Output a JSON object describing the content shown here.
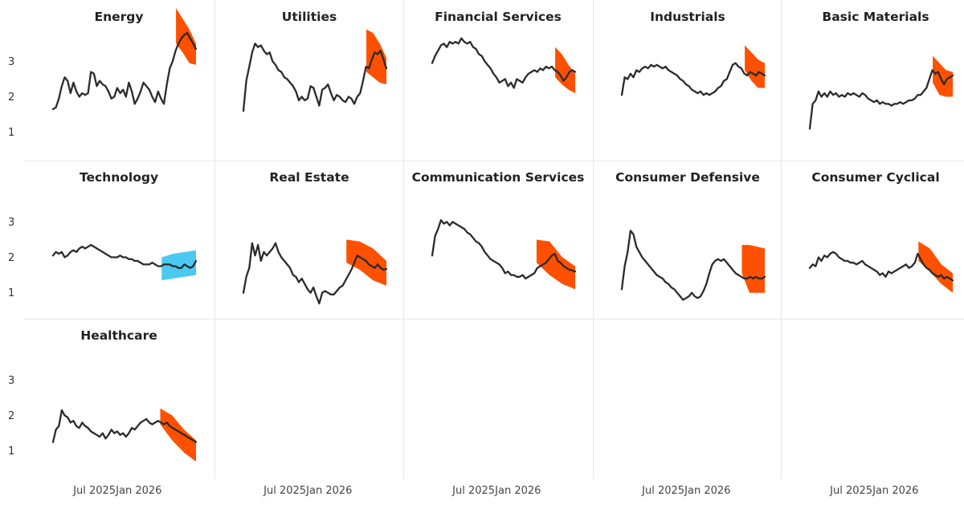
{
  "chart_data": {
    "type": "line",
    "layout": "small-multiples",
    "y_ticks": [
      "1",
      "2",
      "3"
    ],
    "ylim": [
      0.5,
      4.1
    ],
    "xlim": [
      0,
      1
    ],
    "x_ticks": [
      "Jul 2025",
      "Jan 2026"
    ],
    "colors": {
      "line": "#2b2b2b",
      "band_down": "#ff5000",
      "band_up": "#4cc9f0"
    },
    "panels": [
      {
        "title": "Energy",
        "band": "down",
        "values": [
          1.7,
          1.75,
          2.0,
          2.35,
          2.6,
          2.5,
          2.15,
          2.45,
          2.2,
          2.05,
          2.15,
          2.1,
          2.15,
          2.75,
          2.7,
          2.35,
          2.5,
          2.4,
          2.35,
          2.2,
          2.0,
          2.05,
          2.3,
          2.15,
          2.25,
          2.05,
          2.45,
          2.2,
          1.85,
          2.0,
          2.2,
          2.45,
          2.35,
          2.25,
          2.05,
          1.9,
          2.2,
          2.0,
          1.85,
          2.4,
          2.85,
          3.05,
          3.35,
          3.55,
          3.7,
          3.8,
          3.85,
          3.7,
          3.55,
          3.4
        ],
        "forecast_start": 0.86,
        "band_upper": [
          4.55,
          4.25,
          3.95,
          3.55
        ],
        "band_lower": [
          3.55,
          3.3,
          3.0,
          2.95
        ]
      },
      {
        "title": "Utilities",
        "band": "down",
        "values": [
          1.65,
          2.5,
          2.9,
          3.3,
          3.55,
          3.45,
          3.5,
          3.35,
          3.25,
          3.3,
          3.05,
          2.95,
          2.8,
          2.75,
          2.6,
          2.55,
          2.45,
          2.35,
          2.2,
          1.95,
          2.05,
          1.95,
          2.0,
          2.35,
          2.3,
          2.05,
          1.8,
          2.25,
          2.3,
          2.4,
          2.15,
          1.95,
          2.1,
          2.05,
          1.95,
          1.9,
          2.05,
          2.0,
          1.85,
          2.05,
          2.15,
          2.5,
          2.9,
          2.85,
          3.1,
          3.3,
          3.25,
          3.35,
          3.1,
          2.85
        ],
        "forecast_start": 0.86,
        "band_upper": [
          3.95,
          3.85,
          3.55,
          3.15
        ],
        "band_lower": [
          2.75,
          2.6,
          2.45,
          2.4
        ]
      },
      {
        "title": "Financial Services",
        "band": "down",
        "values": [
          3.0,
          3.2,
          3.35,
          3.5,
          3.55,
          3.45,
          3.6,
          3.55,
          3.6,
          3.55,
          3.7,
          3.6,
          3.55,
          3.6,
          3.45,
          3.4,
          3.25,
          3.2,
          3.05,
          2.95,
          2.85,
          2.7,
          2.6,
          2.45,
          2.5,
          2.55,
          2.35,
          2.45,
          2.3,
          2.55,
          2.5,
          2.45,
          2.6,
          2.7,
          2.75,
          2.8,
          2.75,
          2.85,
          2.8,
          2.9,
          2.85,
          2.9,
          2.8,
          2.75,
          2.65,
          2.5,
          2.6,
          2.75,
          2.8,
          2.75
        ],
        "forecast_start": 0.86,
        "band_upper": [
          3.45,
          3.25,
          2.95,
          2.7
        ],
        "band_lower": [
          2.6,
          2.4,
          2.25,
          2.15
        ]
      },
      {
        "title": "Industrials",
        "band": "down",
        "values": [
          2.1,
          2.6,
          2.55,
          2.7,
          2.6,
          2.8,
          2.75,
          2.85,
          2.9,
          2.85,
          2.95,
          2.9,
          2.95,
          2.9,
          2.85,
          2.9,
          2.8,
          2.75,
          2.7,
          2.65,
          2.55,
          2.5,
          2.4,
          2.35,
          2.25,
          2.2,
          2.15,
          2.2,
          2.1,
          2.15,
          2.1,
          2.15,
          2.2,
          2.3,
          2.35,
          2.5,
          2.55,
          2.75,
          2.95,
          3.0,
          2.9,
          2.85,
          2.7,
          2.65,
          2.75,
          2.7,
          2.65,
          2.75,
          2.7,
          2.65
        ],
        "forecast_start": 0.86,
        "band_upper": [
          3.5,
          3.3,
          3.1,
          3.0
        ],
        "band_lower": [
          2.8,
          2.5,
          2.3,
          2.3
        ]
      },
      {
        "title": "Basic Materials",
        "band": "down",
        "values": [
          1.15,
          1.85,
          1.95,
          2.2,
          2.05,
          2.15,
          2.05,
          2.2,
          2.1,
          2.15,
          2.05,
          2.1,
          2.05,
          2.15,
          2.1,
          2.15,
          2.1,
          2.05,
          2.15,
          2.1,
          2.0,
          1.95,
          1.9,
          1.95,
          1.85,
          1.9,
          1.85,
          1.85,
          1.8,
          1.85,
          1.85,
          1.9,
          1.85,
          1.9,
          1.95,
          1.95,
          2.0,
          2.1,
          2.1,
          2.2,
          2.3,
          2.55,
          2.8,
          2.7,
          2.75,
          2.55,
          2.4,
          2.55,
          2.6,
          2.65
        ],
        "forecast_start": 0.86,
        "band_upper": [
          3.2,
          3.0,
          2.8,
          2.75
        ],
        "band_lower": [
          2.45,
          2.1,
          2.05,
          2.05
        ]
      },
      {
        "title": "Technology",
        "band": "up",
        "values": [
          2.1,
          2.2,
          2.15,
          2.2,
          2.05,
          2.1,
          2.2,
          2.25,
          2.2,
          2.3,
          2.35,
          2.3,
          2.35,
          2.4,
          2.35,
          2.3,
          2.25,
          2.2,
          2.15,
          2.1,
          2.05,
          2.05,
          2.05,
          2.1,
          2.05,
          2.05,
          2.0,
          2.0,
          1.95,
          1.95,
          1.9,
          1.85,
          1.85,
          1.85,
          1.9,
          1.85,
          1.8,
          1.8,
          1.85,
          1.85,
          1.85,
          1.8,
          1.8,
          1.75,
          1.75,
          1.85,
          1.8,
          1.75,
          1.8,
          1.95
        ],
        "forecast_start": 0.76,
        "band_upper": [
          2.05,
          2.15,
          2.2,
          2.25
        ],
        "band_lower": [
          1.4,
          1.45,
          1.5,
          1.55
        ]
      },
      {
        "title": "Real Estate",
        "band": "down",
        "values": [
          1.05,
          1.5,
          1.75,
          2.45,
          2.1,
          2.4,
          1.95,
          2.2,
          2.1,
          2.2,
          2.3,
          2.45,
          2.2,
          2.05,
          1.95,
          1.85,
          1.75,
          1.55,
          1.5,
          1.35,
          1.45,
          1.3,
          1.15,
          1.05,
          1.2,
          0.95,
          0.75,
          1.05,
          1.1,
          1.05,
          1.0,
          1.0,
          1.1,
          1.2,
          1.25,
          1.4,
          1.55,
          1.7,
          1.9,
          2.1,
          2.05,
          2.0,
          1.95,
          1.85,
          1.8,
          1.75,
          1.85,
          1.75,
          1.7,
          1.72
        ],
        "forecast_start": 0.72,
        "band_upper": [
          2.55,
          2.5,
          2.3,
          1.95
        ],
        "band_lower": [
          1.9,
          1.7,
          1.4,
          1.25
        ]
      },
      {
        "title": "Communication Services",
        "band": "down",
        "values": [
          2.1,
          2.65,
          2.85,
          3.1,
          3.0,
          3.05,
          2.95,
          3.05,
          3.0,
          2.95,
          2.9,
          2.85,
          2.75,
          2.7,
          2.6,
          2.5,
          2.45,
          2.35,
          2.2,
          2.1,
          2.0,
          1.95,
          1.9,
          1.85,
          1.75,
          1.6,
          1.65,
          1.55,
          1.55,
          1.5,
          1.5,
          1.55,
          1.45,
          1.5,
          1.55,
          1.6,
          1.75,
          1.8,
          1.85,
          1.9,
          2.0,
          2.1,
          2.15,
          1.95,
          1.9,
          1.8,
          1.75,
          1.7,
          1.68,
          1.65
        ],
        "forecast_start": 0.73,
        "band_upper": [
          2.55,
          2.5,
          2.05,
          1.8
        ],
        "band_lower": [
          1.9,
          1.55,
          1.3,
          1.15
        ]
      },
      {
        "title": "Consumer Defensive",
        "band": "down",
        "values": [
          1.15,
          1.8,
          2.2,
          2.8,
          2.7,
          2.35,
          2.2,
          2.05,
          1.95,
          1.85,
          1.75,
          1.65,
          1.55,
          1.5,
          1.45,
          1.35,
          1.3,
          1.2,
          1.15,
          1.05,
          0.95,
          0.85,
          0.9,
          0.95,
          1.05,
          0.95,
          0.9,
          0.95,
          1.1,
          1.3,
          1.6,
          1.85,
          1.95,
          2.0,
          1.95,
          2.0,
          1.9,
          1.8,
          1.7,
          1.6,
          1.55,
          1.5,
          1.45,
          1.45,
          1.5,
          1.45,
          1.5,
          1.45,
          1.45,
          1.5
        ],
        "forecast_start": 0.84,
        "band_upper": [
          2.4,
          2.4,
          2.35,
          2.3
        ],
        "band_lower": [
          1.6,
          1.05,
          1.05,
          1.05
        ]
      },
      {
        "title": "Consumer Cyclical",
        "band": "down",
        "values": [
          1.75,
          1.85,
          1.8,
          2.05,
          1.95,
          2.1,
          2.05,
          2.15,
          2.2,
          2.15,
          2.05,
          2.0,
          1.95,
          1.95,
          1.9,
          1.9,
          1.85,
          1.9,
          1.95,
          1.85,
          1.8,
          1.75,
          1.7,
          1.65,
          1.55,
          1.6,
          1.5,
          1.65,
          1.6,
          1.65,
          1.7,
          1.75,
          1.8,
          1.85,
          1.75,
          1.8,
          1.9,
          2.15,
          2.0,
          1.85,
          1.75,
          1.7,
          1.6,
          1.55,
          1.5,
          1.55,
          1.45,
          1.5,
          1.45,
          1.4
        ],
        "forecast_start": 0.76,
        "band_upper": [
          2.5,
          2.3,
          1.85,
          1.6
        ],
        "band_lower": [
          1.95,
          1.65,
          1.3,
          1.05
        ]
      },
      {
        "title": "Healthcare",
        "band": "down",
        "values": [
          1.3,
          1.65,
          1.75,
          2.2,
          2.05,
          2.0,
          1.85,
          1.9,
          1.75,
          1.7,
          1.85,
          1.75,
          1.7,
          1.6,
          1.55,
          1.5,
          1.45,
          1.55,
          1.4,
          1.5,
          1.65,
          1.55,
          1.6,
          1.5,
          1.55,
          1.45,
          1.55,
          1.7,
          1.65,
          1.75,
          1.85,
          1.9,
          1.95,
          1.85,
          1.8,
          1.85,
          1.9,
          1.85,
          1.8,
          1.85,
          1.75,
          1.7,
          1.65,
          1.6,
          1.55,
          1.5,
          1.45,
          1.4,
          1.35,
          1.3
        ],
        "forecast_start": 0.75,
        "band_upper": [
          2.25,
          2.05,
          1.65,
          1.35
        ],
        "band_lower": [
          1.8,
          1.35,
          1.0,
          0.75
        ]
      }
    ]
  }
}
